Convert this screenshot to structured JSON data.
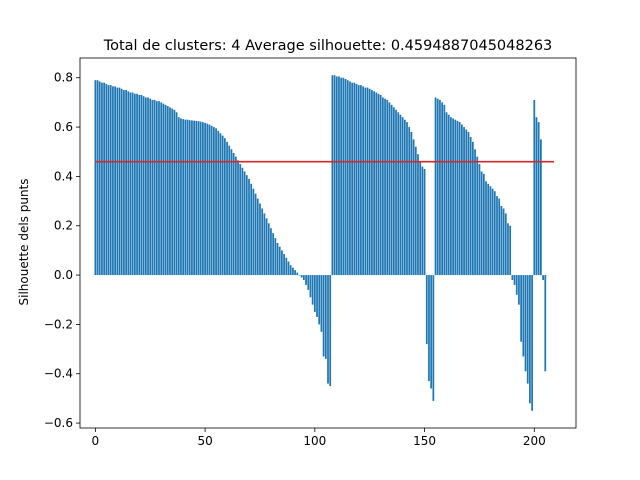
{
  "chart_data": {
    "type": "bar",
    "title": "Total de clusters: 4 Average silhouette: 0.4594887045048263",
    "xlabel": "",
    "ylabel": "Silhouette dels punts",
    "xlim": [
      -7,
      219
    ],
    "ylim": [
      -0.62,
      0.88
    ],
    "xticks": [
      0,
      50,
      100,
      150,
      200
    ],
    "yticks": [
      -0.6,
      -0.4,
      -0.2,
      0.0,
      0.2,
      0.4,
      0.6,
      0.8
    ],
    "ytick_labels": [
      "−0.6",
      "−0.4",
      "−0.2",
      "0.0",
      "0.2",
      "0.4",
      "0.6",
      "0.8"
    ],
    "bar_color": "#1f77b4",
    "average_line": {
      "value": 0.4594887045048263,
      "x_start": 0,
      "x_end": 209,
      "color": "#d62728"
    },
    "series": [
      {
        "values": [
          0.79,
          0.79,
          0.785,
          0.78,
          0.78,
          0.775,
          0.77,
          0.77,
          0.765,
          0.765,
          0.76,
          0.76,
          0.755,
          0.75,
          0.75,
          0.745,
          0.74,
          0.74,
          0.735,
          0.735,
          0.73,
          0.73,
          0.725,
          0.72,
          0.72,
          0.715,
          0.71,
          0.71,
          0.705,
          0.705,
          0.7,
          0.695,
          0.69,
          0.685,
          0.68,
          0.675,
          0.67,
          0.66,
          0.64,
          0.635,
          0.632,
          0.63,
          0.63,
          0.628,
          0.627,
          0.626,
          0.625,
          0.624,
          0.622,
          0.62,
          0.617,
          0.614,
          0.61,
          0.605,
          0.6,
          0.595,
          0.585,
          0.575,
          0.565,
          0.555,
          0.54,
          0.525,
          0.51,
          0.495,
          0.48,
          0.465,
          0.45,
          0.435,
          0.42,
          0.405,
          0.39,
          0.37,
          0.35,
          0.33,
          0.31,
          0.29,
          0.27,
          0.25,
          0.23,
          0.21,
          0.19,
          0.17,
          0.15,
          0.13,
          0.115,
          0.1,
          0.085,
          0.07,
          0.055,
          0.04,
          0.03,
          0.02,
          0.01,
          0.0,
          -0.01,
          -0.02,
          -0.04,
          -0.06,
          -0.09,
          -0.12,
          -0.15,
          -0.17,
          -0.2,
          -0.23,
          -0.33,
          -0.34,
          -0.44,
          -0.45
        ]
      },
      {
        "values": [
          0.81,
          0.81,
          0.805,
          0.805,
          0.8,
          0.8,
          0.795,
          0.79,
          0.785,
          0.78,
          0.78,
          0.775,
          0.77,
          0.77,
          0.765,
          0.76,
          0.76,
          0.755,
          0.75,
          0.745,
          0.74,
          0.735,
          0.73,
          0.72,
          0.715,
          0.71,
          0.7,
          0.69,
          0.68,
          0.67,
          0.66,
          0.65,
          0.64,
          0.63,
          0.62,
          0.6,
          0.58,
          0.55,
          0.52,
          0.49,
          0.46,
          0.44,
          0.43,
          -0.28,
          -0.43,
          -0.46,
          -0.51
        ]
      },
      {
        "values": [
          0.72,
          0.715,
          0.71,
          0.7,
          0.69,
          0.66,
          0.65,
          0.64,
          0.635,
          0.63,
          0.625,
          0.62,
          0.61,
          0.6,
          0.59,
          0.58,
          0.56,
          0.54,
          0.51,
          0.48,
          0.45,
          0.42,
          0.41,
          0.38,
          0.37,
          0.36,
          0.35,
          0.34,
          0.32,
          0.31,
          0.28,
          0.27,
          0.25,
          0.21,
          0.2,
          -0.02,
          -0.04,
          -0.08,
          -0.12,
          -0.27,
          -0.33,
          -0.39,
          -0.44,
          -0.52,
          -0.55,
          0.71,
          0.64,
          0.62,
          0.55,
          -0.02,
          -0.39
        ]
      }
    ]
  }
}
